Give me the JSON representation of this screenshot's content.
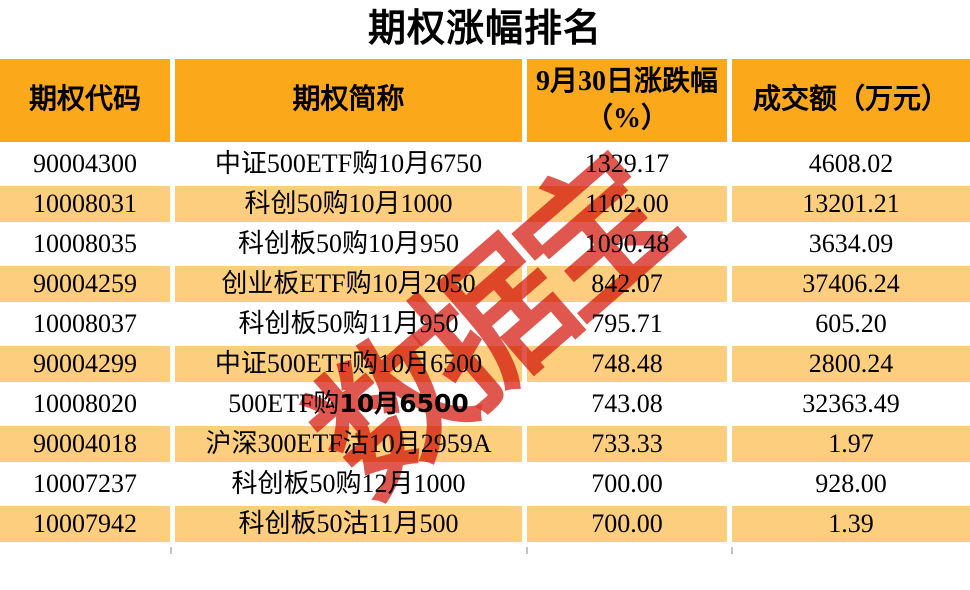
{
  "title": "期权涨幅排名",
  "watermark": "数据宝",
  "colors": {
    "header_bg": "#FBA81B",
    "alt_row_bg": "#FCCE7D",
    "watermark_red": "#DA3930",
    "gridline_gray": "#C4C4C4",
    "text": "#000000"
  },
  "table": {
    "headers": [
      {
        "label": "期权代码"
      },
      {
        "label": "期权简称"
      },
      {
        "label": "9月30日涨跌幅",
        "label_line2": "（%）"
      },
      {
        "label": "成交额（万元）"
      }
    ],
    "rows": [
      {
        "code": "90004300",
        "name": "中证500ETF购10月6750",
        "change": "1329.17",
        "turnover": "4608.02"
      },
      {
        "code": "10008031",
        "name": "科创50购10月1000",
        "change": "1102.00",
        "turnover": "13201.21"
      },
      {
        "code": "10008035",
        "name": "科创板50购10月950",
        "change": "1090.48",
        "turnover": "3634.09"
      },
      {
        "code": "90004259",
        "name": "创业板ETF购10月2050",
        "change": "842.07",
        "turnover": "37406.24"
      },
      {
        "code": "10008037",
        "name": "科创板50购11月950",
        "change": "795.71",
        "turnover": "605.20"
      },
      {
        "code": "90004299",
        "name": "中证500ETF购10月6500",
        "change": "748.48",
        "turnover": "2800.24"
      },
      {
        "code": "10008020",
        "name": "500ETF购",
        "name_sans": "10月6500",
        "change": "743.08",
        "turnover": "32363.49"
      },
      {
        "code": "90004018",
        "name": "沪深300ETF沽10月2959A",
        "change": "733.33",
        "turnover": "1.97"
      },
      {
        "code": "10007237",
        "name": "科创板50购12月1000",
        "change": "700.00",
        "turnover": "928.00"
      },
      {
        "code": "10007942",
        "name": "科创板50沽11月500",
        "change": "700.00",
        "turnover": "1.39"
      }
    ]
  },
  "chart_data": {
    "type": "table",
    "title": "期权涨幅排名",
    "columns": [
      "期权代码",
      "期权简称",
      "9月30日涨跌幅（%）",
      "成交额（万元）"
    ],
    "rows": [
      [
        "90004300",
        "中证500ETF购10月6750",
        1329.17,
        4608.02
      ],
      [
        "10008031",
        "科创50购10月1000",
        1102.0,
        13201.21
      ],
      [
        "10008035",
        "科创板50购10月950",
        1090.48,
        3634.09
      ],
      [
        "90004259",
        "创业板ETF购10月2050",
        842.07,
        37406.24
      ],
      [
        "10008037",
        "科创板50购11月950",
        795.71,
        605.2
      ],
      [
        "90004299",
        "中证500ETF购10月6500",
        748.48,
        2800.24
      ],
      [
        "10008020",
        "500ETF购10月6500",
        743.08,
        32363.49
      ],
      [
        "90004018",
        "沪深300ETF沽10月2959A",
        733.33,
        1.97
      ],
      [
        "10007237",
        "科创板50购12月1000",
        700.0,
        928.0
      ],
      [
        "10007942",
        "科创板50沽11月500",
        700.0,
        1.39
      ]
    ],
    "annotations": [
      "数据宝 watermark, rotated red text"
    ]
  }
}
